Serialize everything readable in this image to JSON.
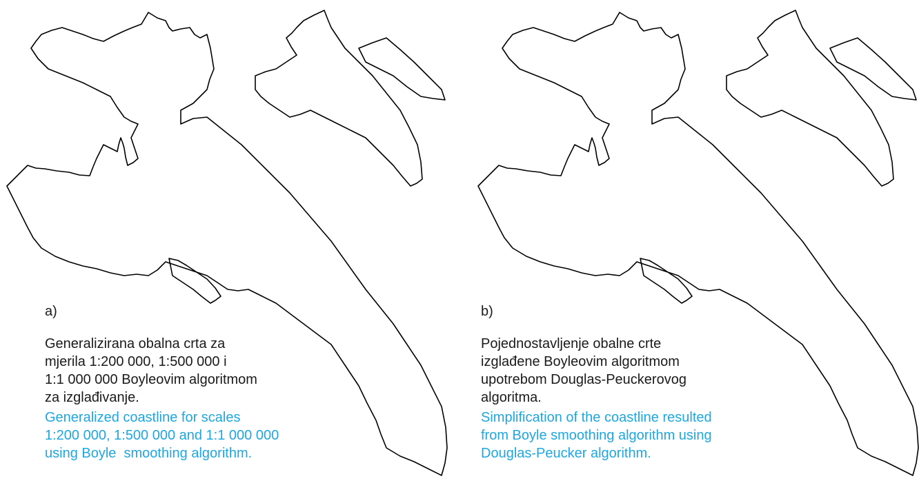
{
  "panels": [
    {
      "label": "a)",
      "caption_hr": [
        "Generalizirana obalna crta za",
        "mjerila 1:200 000, 1:500 000 i",
        "1:1 000 000 Boyleovim algoritmom",
        "za izglađivanje."
      ],
      "caption_en": [
        "Generalized coastline for scales",
        "1:200 000, 1:500 000 and 1:1 000 000",
        "using Boyle  smoothing algorithm."
      ]
    },
    {
      "label": "b)",
      "caption_hr": [
        "Pojednostavljenje obalne crte",
        "izglađene Boyleovim algoritmom",
        "upotrebom Douglas-Peuckerovog",
        "algoritma."
      ],
      "caption_en": [
        "Simplification of the coastline resulted",
        "from Boyle smoothing algorithm using",
        "Douglas-Peucker algorithm."
      ]
    }
  ]
}
